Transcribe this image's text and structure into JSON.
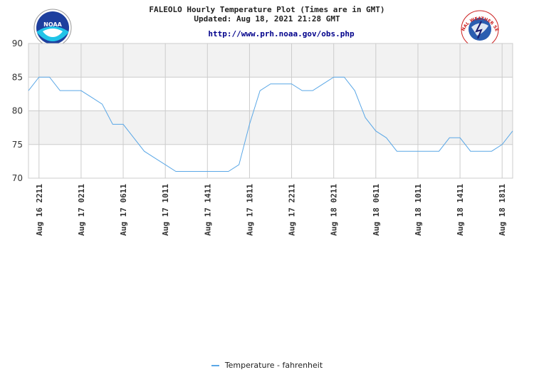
{
  "header": {
    "title_line1": "FALEOLO Hourly Temperature Plot (Times are in GMT)",
    "title_line2": "Updated: Aug 18, 2021 21:28 GMT",
    "url": "http://www.prh.noaa.gov/obs.php"
  },
  "logos": {
    "left": "NOAA",
    "right": "NATIONAL WEATHER SERVICE"
  },
  "colors": {
    "line": "#5aa7e6",
    "band": "#f2f2f2",
    "grid": "#cccccc",
    "url": "#00008b"
  },
  "chart_data": {
    "type": "line",
    "title": "FALEOLO Hourly Temperature Plot (Times are in GMT)",
    "ylim": [
      70,
      90
    ],
    "yticks": [
      70,
      75,
      80,
      85,
      90
    ],
    "x_tick_labels": [
      "Aug 16 2211",
      "Aug 17 0211",
      "Aug 17 0611",
      "Aug 17 1011",
      "Aug 17 1411",
      "Aug 17 1811",
      "Aug 17 2211",
      "Aug 18 0211",
      "Aug 18 0611",
      "Aug 18 1011",
      "Aug 18 1411",
      "Aug 18 1811"
    ],
    "x_tick_hours": [
      0,
      4,
      8,
      12,
      16,
      20,
      24,
      28,
      32,
      36,
      40,
      44
    ],
    "x_range_hours": [
      -1,
      45
    ],
    "legend_position": "bottom",
    "series": [
      {
        "name": "Temperature - fahrenheit",
        "x_hours": [
          -1,
          0,
          1,
          2,
          3,
          4,
          5,
          6,
          7,
          8,
          9,
          10,
          11,
          12,
          13,
          14,
          15,
          16,
          17,
          18,
          19,
          20,
          21,
          22,
          23,
          24,
          25,
          26,
          27,
          28,
          29,
          30,
          31,
          32,
          33,
          34,
          35,
          36,
          37,
          38,
          39,
          40,
          41,
          42,
          43,
          44,
          45
        ],
        "values": [
          83,
          85,
          85,
          83,
          83,
          83,
          82,
          81,
          78,
          78,
          76,
          74,
          73,
          72,
          71,
          71,
          71,
          71,
          71,
          71,
          72,
          78,
          83,
          84,
          84,
          84,
          83,
          83,
          84,
          85,
          85,
          83,
          79,
          77,
          76,
          74,
          74,
          74,
          74,
          74,
          76,
          76,
          74,
          74,
          74,
          75,
          77
        ]
      }
    ]
  }
}
